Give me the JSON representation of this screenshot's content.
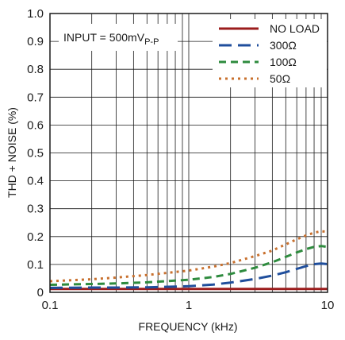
{
  "chart_data": {
    "type": "line",
    "title": "",
    "xlabel": "FREQUENCY (kHz)",
    "ylabel": "THD + NOISE (%)",
    "x_scale": "log",
    "xlim": [
      0.1,
      10
    ],
    "ylim": [
      0,
      1.0
    ],
    "x_ticks": [
      {
        "value": 0.1,
        "label": "0.1"
      },
      {
        "value": 1,
        "label": "1"
      },
      {
        "value": 10,
        "label": "10"
      }
    ],
    "y_ticks": [
      {
        "value": 0,
        "label": "0"
      },
      {
        "value": 0.1,
        "label": "0.1"
      },
      {
        "value": 0.2,
        "label": "0.2"
      },
      {
        "value": 0.3,
        "label": "0.3"
      },
      {
        "value": 0.4,
        "label": "0.4"
      },
      {
        "value": 0.5,
        "label": "0.5"
      },
      {
        "value": 0.6,
        "label": "0.6"
      },
      {
        "value": 0.7,
        "label": "0.7"
      },
      {
        "value": 0.8,
        "label": "0.8"
      },
      {
        "value": 0.9,
        "label": "0.9"
      },
      {
        "value": 1.0,
        "label": "1.0"
      }
    ],
    "grid": true,
    "legend_position": "top-right",
    "annotation": {
      "prefix": "INPUT = 500mV",
      "subscript": "P-P"
    },
    "series": [
      {
        "name": "NO LOAD",
        "color": "#9b1c1c",
        "dash": "solid",
        "x": [
          0.1,
          0.2,
          0.5,
          1,
          2,
          5,
          8,
          10
        ],
        "y": [
          0.012,
          0.012,
          0.012,
          0.012,
          0.012,
          0.012,
          0.012,
          0.012
        ]
      },
      {
        "name": "300Ω",
        "color": "#1f4e9c",
        "dash": "long-dash",
        "x": [
          0.1,
          0.2,
          0.3,
          0.5,
          1,
          1.5,
          2,
          3,
          4,
          5,
          6,
          7,
          8,
          9,
          10
        ],
        "y": [
          0.016,
          0.017,
          0.017,
          0.018,
          0.022,
          0.028,
          0.035,
          0.048,
          0.06,
          0.072,
          0.084,
          0.094,
          0.101,
          0.103,
          0.101
        ]
      },
      {
        "name": "100Ω",
        "color": "#2e8b3e",
        "dash": "medium-dash",
        "x": [
          0.1,
          0.2,
          0.3,
          0.5,
          1,
          1.5,
          2,
          3,
          4,
          5,
          6,
          7,
          8,
          9,
          10
        ],
        "y": [
          0.027,
          0.03,
          0.032,
          0.036,
          0.045,
          0.055,
          0.066,
          0.088,
          0.108,
          0.127,
          0.143,
          0.155,
          0.163,
          0.166,
          0.163
        ]
      },
      {
        "name": "50Ω",
        "color": "#c8702e",
        "dash": "dotted",
        "x": [
          0.1,
          0.2,
          0.3,
          0.5,
          1,
          1.5,
          2,
          3,
          4,
          5,
          6,
          7,
          8,
          9,
          10
        ],
        "y": [
          0.04,
          0.047,
          0.053,
          0.062,
          0.078,
          0.092,
          0.105,
          0.13,
          0.15,
          0.172,
          0.19,
          0.204,
          0.214,
          0.219,
          0.217
        ]
      }
    ]
  }
}
